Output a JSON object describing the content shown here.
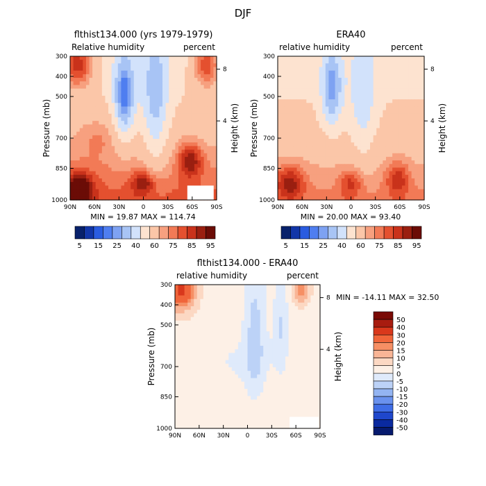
{
  "page_title": "DJF",
  "chart_data": [
    {
      "type": "heatmap",
      "title": "flthist134.000 (yrs 1979-1979)",
      "left_label": "Relative humidity",
      "right_label": "percent",
      "ylabel": "Pressure (mb)",
      "y2label": "Height (km)",
      "x_ticks": [
        "90N",
        "60N",
        "30N",
        "0",
        "30S",
        "60S",
        "90S"
      ],
      "y_ticks": [
        "300",
        "400",
        "500",
        "700",
        "850",
        "1000"
      ],
      "y2_ticks": [
        "8",
        "4"
      ],
      "stats": "MIN = 19.87 MAX = 114.74",
      "colorbar_labels": [
        "5",
        "15",
        "25",
        "40",
        "60",
        "75",
        "85",
        "95"
      ]
    },
    {
      "type": "heatmap",
      "title": "ERA40",
      "left_label": "relative humidity",
      "right_label": "percent",
      "ylabel": "Pressure (mb)",
      "y2label": "Height (km)",
      "x_ticks": [
        "90N",
        "60N",
        "30N",
        "0",
        "30S",
        "60S",
        "90S"
      ],
      "y_ticks": [
        "300",
        "400",
        "500",
        "700",
        "850",
        "1000"
      ],
      "y2_ticks": [
        "8",
        "4"
      ],
      "stats": "MIN = 20.00 MAX = 93.40",
      "colorbar_labels": [
        "5",
        "15",
        "25",
        "40",
        "60",
        "75",
        "85",
        "95"
      ]
    },
    {
      "type": "heatmap",
      "title": "flthist134.000 - ERA40",
      "left_label": "relative humidity",
      "right_label": "percent",
      "ylabel": "Pressure (mb)",
      "y2label": "Height (km)",
      "x_ticks": [
        "90N",
        "60N",
        "30N",
        "0",
        "30S",
        "60S",
        "90S"
      ],
      "y_ticks": [
        "300",
        "400",
        "500",
        "700",
        "850",
        "1000"
      ],
      "y2_ticks": [
        "8",
        "4"
      ],
      "stats": "MIN = -14.11 MAX = 32.50",
      "colorbar_labels": [
        "50",
        "40",
        "30",
        "20",
        "15",
        "10",
        "5",
        "0",
        "-5",
        "-10",
        "-15",
        "-20",
        "-30",
        "-40",
        "-50"
      ]
    }
  ],
  "colors": {
    "abs_scale": [
      "#08216b",
      "#1236a8",
      "#2a5ce0",
      "#4f7ef0",
      "#7ea2f2",
      "#a8c4f5",
      "#d2e2fb",
      "#fde3d0",
      "#fbc6a8",
      "#f7a07f",
      "#f27a56",
      "#e4502f",
      "#c9321b",
      "#9a1f10",
      "#6b0c06"
    ],
    "diff_scale": [
      "#7a0a05",
      "#a81c10",
      "#d9381c",
      "#f0653a",
      "#f68f64",
      "#f9b596",
      "#fcd8c3",
      "#fdf0e6",
      "#dfeafb",
      "#bcd2f7",
      "#93b4f2",
      "#6a92ee",
      "#3f6de6",
      "#1f47cc",
      "#0a2aa0",
      "#061a6e"
    ]
  }
}
